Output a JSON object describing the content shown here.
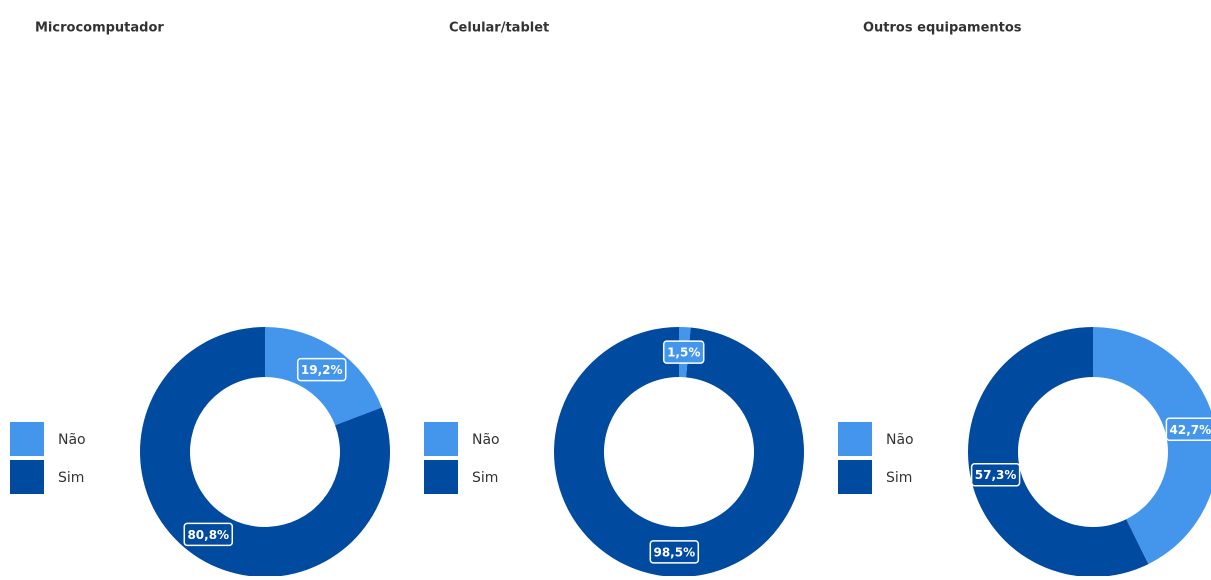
{
  "chart_data": [
    {
      "type": "donut",
      "title": "Microcomputador",
      "categories": [
        "Não",
        "Sim"
      ],
      "values": [
        19.2,
        80.8
      ],
      "value_labels": [
        "19,2%",
        "80,8%"
      ],
      "colors": [
        "#4496ec",
        "#004a9f"
      ]
    },
    {
      "type": "donut",
      "title": "Celular/tablet",
      "categories": [
        "Não",
        "Sim"
      ],
      "values": [
        1.5,
        98.5
      ],
      "value_labels": [
        "1,5%",
        "98,5%"
      ],
      "colors": [
        "#4496ec",
        "#004a9f"
      ]
    },
    {
      "type": "donut",
      "title": "Outros equipamentos",
      "categories": [
        "Não",
        "Sim"
      ],
      "values": [
        42.7,
        57.3
      ],
      "value_labels": [
        "42,7%",
        "57,3%"
      ],
      "colors": [
        "#4496ec",
        "#004a9f"
      ]
    }
  ]
}
